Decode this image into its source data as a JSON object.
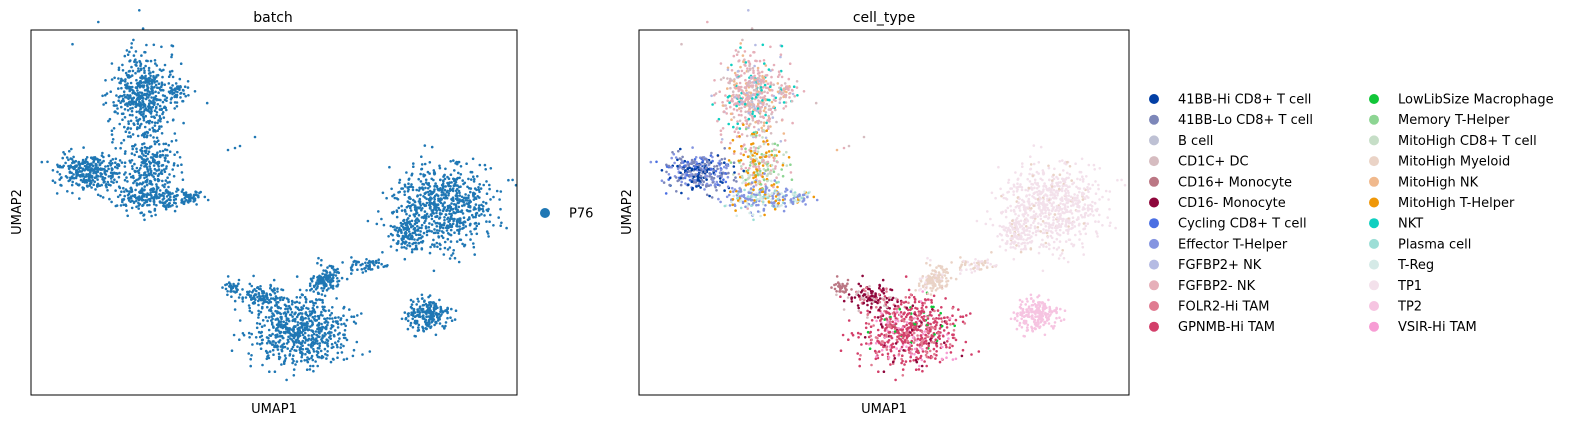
{
  "chart_data": [
    {
      "type": "scatter",
      "title": "batch",
      "xlabel": "UMAP1",
      "ylabel": "UMAP2",
      "grid": false,
      "axis_ticks": false,
      "legend_position": "right",
      "legend": [
        {
          "label": "P76",
          "color": "#1f77b4"
        }
      ],
      "point_color": "#1f77b4"
    },
    {
      "type": "scatter",
      "title": "cell_type",
      "xlabel": "UMAP1",
      "ylabel": "UMAP2",
      "grid": false,
      "axis_ticks": false,
      "legend_position": "right",
      "legend": [
        {
          "label": "41BB-Hi CD8+ T cell",
          "color": "#023fa5"
        },
        {
          "label": "41BB-Lo CD8+ T cell",
          "color": "#7d87b9"
        },
        {
          "label": "B cell",
          "color": "#bec1d4"
        },
        {
          "label": "CD1C+ DC",
          "color": "#d6bcc0"
        },
        {
          "label": "CD16+ Monocyte",
          "color": "#bb7784"
        },
        {
          "label": "CD16- Monocyte",
          "color": "#8e063b"
        },
        {
          "label": "Cycling CD8+ T cell",
          "color": "#4a6fe3"
        },
        {
          "label": "Effector T-Helper",
          "color": "#8595e1"
        },
        {
          "label": "FGFBP2+ NK",
          "color": "#b5bbe3"
        },
        {
          "label": "FGFBP2- NK",
          "color": "#e6afb9"
        },
        {
          "label": "FOLR2-Hi TAM",
          "color": "#e07b91"
        },
        {
          "label": "GPNMB-Hi TAM",
          "color": "#d33f6a"
        },
        {
          "label": "LowLibSize Macrophage",
          "color": "#11c638"
        },
        {
          "label": "Memory T-Helper",
          "color": "#8dd593"
        },
        {
          "label": "MitoHigh CD8+ T cell",
          "color": "#c6dec7"
        },
        {
          "label": "MitoHigh Myeloid",
          "color": "#ead3c6"
        },
        {
          "label": "MitoHigh NK",
          "color": "#f0b98d"
        },
        {
          "label": "MitoHigh T-Helper",
          "color": "#ef9708"
        },
        {
          "label": "NKT",
          "color": "#0fcfc0"
        },
        {
          "label": "Plasma cell",
          "color": "#9cded6"
        },
        {
          "label": "T-Reg",
          "color": "#d5eae7"
        },
        {
          "label": "TP1",
          "color": "#f3e1eb"
        },
        {
          "label": "TP2",
          "color": "#f6c4e1"
        },
        {
          "label": "VSIR-Hi TAM",
          "color": "#f79cd4"
        }
      ]
    }
  ]
}
